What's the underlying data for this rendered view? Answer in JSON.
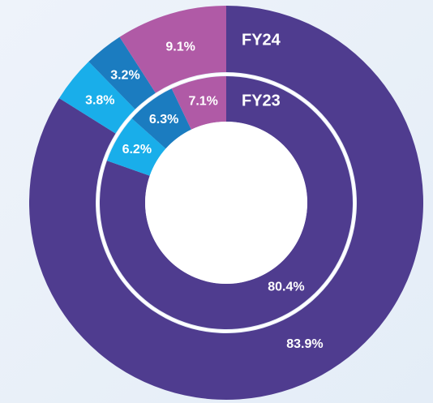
{
  "chart_data": {
    "type": "donut",
    "series": [
      {
        "name": "FY24",
        "values": [
          83.9,
          3.8,
          3.2,
          9.1
        ],
        "value_labels": [
          "83.9%",
          "3.8%",
          "3.2%",
          "9.1%"
        ],
        "colors": [
          "#4f3c8f",
          "#19aeea",
          "#1b7cc0",
          "#b05aa6"
        ]
      },
      {
        "name": "FY23",
        "values": [
          80.4,
          6.2,
          6.3,
          7.1
        ],
        "value_labels": [
          "80.4%",
          "6.2%",
          "6.3%",
          "7.1%"
        ],
        "colors": [
          "#4f3c8f",
          "#19aeea",
          "#1b7cc0",
          "#b05aa6"
        ]
      }
    ]
  }
}
